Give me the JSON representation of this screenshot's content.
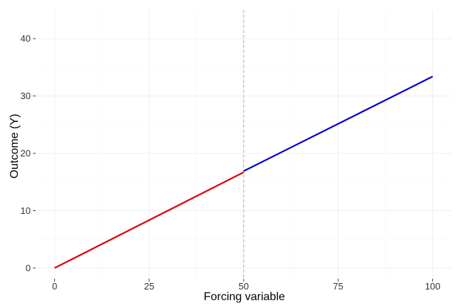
{
  "chart_data": {
    "type": "line",
    "xlabel": "Forcing variable",
    "ylabel": "Outcome (Y)",
    "xlim": [
      -5,
      105
    ],
    "ylim": [
      -2,
      45
    ],
    "x_ticks": [
      0,
      25,
      50,
      75,
      100
    ],
    "y_ticks": [
      0,
      10,
      20,
      30,
      40
    ],
    "cutoff": 50,
    "grid": true,
    "series": [
      {
        "color": "#e00000",
        "x": [
          0,
          50
        ],
        "y": [
          0,
          16.7
        ]
      },
      {
        "color": "#0000cc",
        "x": [
          50,
          100
        ],
        "y": [
          16.9,
          33.4
        ]
      }
    ],
    "cutoff_line_color": "#aaaaaa"
  }
}
